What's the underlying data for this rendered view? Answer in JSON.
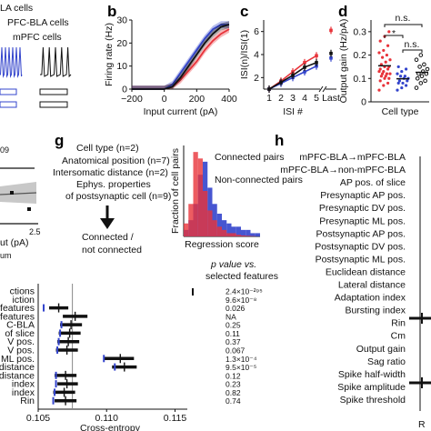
{
  "colors": {
    "bla": "#e8333a",
    "nonbla": "#3344cc",
    "black": "#111111",
    "grey": "#888888"
  },
  "panel_a": {
    "legend": [
      "LA cells",
      "PFC-BLA cells",
      "mPFC cells"
    ]
  },
  "panel_c": {
    "ylabel": "ISI(n)/ISI(1)"
  },
  "panel_d": {
    "ylabel": "Output gain (Hz/pA)"
  },
  "panel_f": {
    "year_fragment": "09",
    "x_tick": "2.5",
    "xlabel_fragment": "ut (pA)",
    "sub_fragment": "um"
  },
  "panel_g": {
    "label": "g",
    "features": [
      "Cell type (n=2)",
      "Anatomical position (n=7)",
      "Intersomatic distance (n=2)",
      "Ephys. properties",
      "of postsynaptic cell (n=9)"
    ],
    "outcome": [
      "Connected /",
      "not connected"
    ],
    "hist_legend": [
      "Connected pairs",
      "Non-connected pairs"
    ]
  },
  "panel_h": {
    "label": "h",
    "features": [
      "mPFC-BLA→mPFC-BLA",
      "mPFC-BLA→non-mPFC-BLA",
      "AP pos. of slice",
      "Presynaptic AP pos.",
      "Presynaptic DV pos.",
      "Presynaptic ML pos.",
      "Postsynaptic AP pos.",
      "Postsynaptic DV pos.",
      "Postsynaptic ML pos.",
      "Euclidean distance",
      "Lateral distance",
      "Adaptation index",
      "Bursting index",
      "Rin",
      "Cm",
      "Output gain",
      "Sag ratio",
      "Spike half-width",
      "Spike amplitude",
      "Spike threshold"
    ],
    "col_fragment": "R"
  },
  "panel_ce": {
    "pvalue_header": [
      "p value vs.",
      "selected features"
    ],
    "row_labels": [
      "ctions",
      "iction",
      "features",
      "features",
      "C-BLA",
      "of slice",
      "V pos.",
      "V pos.",
      "ML pos.",
      "distance",
      "distance",
      "index",
      "index",
      "Rin"
    ]
  },
  "chart_data": [
    {
      "id": "b",
      "type": "line",
      "xlabel": "Input current (pA)",
      "ylabel": "Firing rate (Hz)",
      "xlim": [
        -200,
        400
      ],
      "ylim": [
        0,
        30
      ],
      "xticks": [
        "−200",
        "0",
        "200",
        "400"
      ],
      "yticks": [
        "0",
        "10",
        "20",
        "30"
      ],
      "series": [
        {
          "color": "#e8333a",
          "x": [
            -200,
            0,
            50,
            100,
            150,
            200,
            250,
            300,
            350,
            400
          ],
          "y": [
            0,
            0,
            1,
            4,
            8,
            12,
            17,
            21,
            24,
            26
          ]
        },
        {
          "color": "#3344cc",
          "x": [
            -200,
            0,
            50,
            100,
            150,
            200,
            250,
            300,
            350,
            400
          ],
          "y": [
            0,
            0,
            2,
            7,
            12,
            17,
            22,
            26,
            28,
            28
          ]
        },
        {
          "color": "#111111",
          "x": [
            -200,
            0,
            50,
            100,
            150,
            200,
            250,
            300,
            350,
            400
          ],
          "y": [
            0,
            0,
            1,
            5,
            10,
            15,
            20,
            24,
            27,
            28
          ]
        }
      ]
    },
    {
      "id": "c",
      "type": "line",
      "xlabel": "ISI #",
      "ylabel": "ISI(n)/ISI(1)",
      "xlim": [
        1,
        5
      ],
      "ylim": [
        1,
        7
      ],
      "categories": [
        "1",
        "2",
        "3",
        "4",
        "5",
        "Last"
      ],
      "yticks": [
        "2",
        "4",
        "6"
      ],
      "series": [
        {
          "color": "#e8333a",
          "values": [
            1.0,
            1.7,
            2.5,
            3.3,
            3.9,
            6.1
          ]
        },
        {
          "color": "#3344cc",
          "values": [
            1.0,
            1.5,
            2.0,
            2.5,
            3.0,
            3.7
          ]
        },
        {
          "color": "#111111",
          "values": [
            1.0,
            1.6,
            2.2,
            2.9,
            3.3,
            4.1
          ]
        }
      ]
    },
    {
      "id": "d",
      "type": "scatter",
      "xlabel": "Cell type",
      "ylabel": "Output gain (Hz/pA)",
      "ylim": [
        0,
        0.35
      ],
      "yticks": [
        "0",
        "0.1",
        "0.2",
        "0.3"
      ],
      "annotations": [
        "*",
        "n.s.",
        "n.s."
      ],
      "series": [
        {
          "color": "#e8333a",
          "y": [
            0.05,
            0.07,
            0.08,
            0.09,
            0.1,
            0.1,
            0.11,
            0.11,
            0.12,
            0.12,
            0.12,
            0.13,
            0.13,
            0.14,
            0.14,
            0.15,
            0.15,
            0.16,
            0.17,
            0.18,
            0.19,
            0.2,
            0.21,
            0.22,
            0.24,
            0.26,
            0.28,
            0.3
          ]
        },
        {
          "color": "#3344cc",
          "y": [
            0.05,
            0.06,
            0.07,
            0.08,
            0.08,
            0.09,
            0.09,
            0.1,
            0.1,
            0.11,
            0.11,
            0.12,
            0.13,
            0.14,
            0.15
          ]
        },
        {
          "color": "#111111",
          "y": [
            0.06,
            0.08,
            0.09,
            0.1,
            0.11,
            0.12,
            0.12,
            0.13,
            0.14,
            0.15,
            0.16,
            0.18,
            0.2
          ]
        }
      ]
    },
    {
      "id": "g-hist",
      "type": "bar",
      "xlabel": "Regression score",
      "ylabel": "Fraction of cell pairs",
      "series": [
        {
          "name": "Connected pairs",
          "color": "#3344cc",
          "values": [
            0.02,
            0.05,
            0.1,
            0.19,
            0.23,
            0.15,
            0.1,
            0.07,
            0.05,
            0.04,
            0.03,
            0.03,
            0.02,
            0.02,
            0.01,
            0.01
          ]
        },
        {
          "name": "Non-connected pairs",
          "color": "#e8333a",
          "values": [
            0.04,
            0.1,
            0.26,
            0.24,
            0.14,
            0.08,
            0.05,
            0.03,
            0.02,
            0.01,
            0.01,
            0.005,
            0.003,
            0.002,
            0.001,
            0.0
          ]
        }
      ]
    },
    {
      "id": "cross-entropy",
      "type": "scatter",
      "xlabel": "Cross-entropy",
      "xlim": [
        0.105,
        0.1155
      ],
      "xticks": [
        "0.105",
        "0.110",
        "0.115"
      ],
      "reference_x": 0.1075,
      "rows": [
        {
          "label": "ctions",
          "mean": null,
          "blue": null,
          "pvalue": "2.4×10⁻²⁹⁵"
        },
        {
          "label": "iction",
          "mean": null,
          "blue": null,
          "pvalue": "9.6×10⁻⁸"
        },
        {
          "label": "features",
          "mean": 0.1065,
          "lo": 0.1058,
          "hi": 0.1072,
          "blue": 0.1054,
          "pvalue": "0.026"
        },
        {
          "label": "features",
          "mean": 0.1077,
          "lo": 0.1068,
          "hi": 0.1086,
          "blue": null,
          "pvalue": "NA"
        },
        {
          "label": "C-BLA",
          "mean": 0.1074,
          "lo": 0.1066,
          "hi": 0.1082,
          "blue": 0.1067,
          "pvalue": "0.25"
        },
        {
          "label": "of slice",
          "mean": 0.1073,
          "lo": 0.1065,
          "hi": 0.1081,
          "blue": 0.1066,
          "pvalue": "0.11"
        },
        {
          "label": "V pos.",
          "mean": 0.1072,
          "lo": 0.1064,
          "hi": 0.108,
          "blue": 0.1065,
          "pvalue": "0.37"
        },
        {
          "label": "V pos.",
          "mean": 0.1071,
          "lo": 0.1063,
          "hi": 0.1079,
          "blue": 0.1064,
          "pvalue": "0.067"
        },
        {
          "label": "ML pos.",
          "mean": 0.111,
          "lo": 0.1098,
          "hi": 0.112,
          "blue": 0.1098,
          "pvalue": "1.3×10⁻⁴"
        },
        {
          "label": "distance",
          "mean": 0.1113,
          "lo": 0.1104,
          "hi": 0.1122,
          "blue": 0.1106,
          "pvalue": "9.5×10⁻⁵"
        },
        {
          "label": "distance",
          "mean": 0.107,
          "lo": 0.1062,
          "hi": 0.1078,
          "blue": 0.1063,
          "pvalue": "0.12"
        },
        {
          "label": "index",
          "mean": 0.1071,
          "lo": 0.1064,
          "hi": 0.1079,
          "blue": 0.1063,
          "pvalue": "0.23"
        },
        {
          "label": "index",
          "mean": 0.1069,
          "lo": 0.1061,
          "hi": 0.1077,
          "blue": 0.1062,
          "pvalue": "0.82"
        },
        {
          "label": "Rin",
          "mean": 0.107,
          "lo": 0.1062,
          "hi": 0.1078,
          "blue": 0.1061,
          "pvalue": "0.74"
        }
      ]
    }
  ]
}
